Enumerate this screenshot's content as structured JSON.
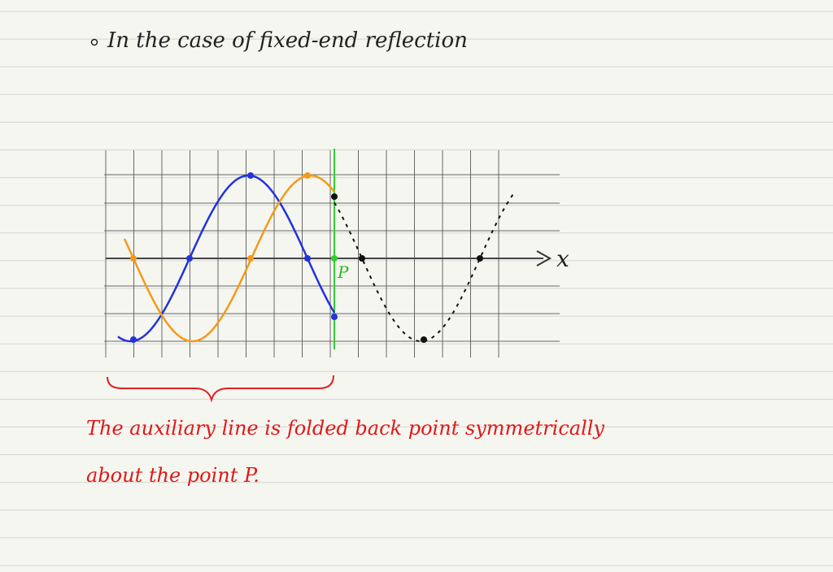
{
  "heading": "In the case of fixed-end reflection",
  "diagram": {
    "axis_label": "x",
    "point_label": "P"
  },
  "caption": [
    "The auxiliary line is folded back point symmetrically",
    "about the point P."
  ]
}
